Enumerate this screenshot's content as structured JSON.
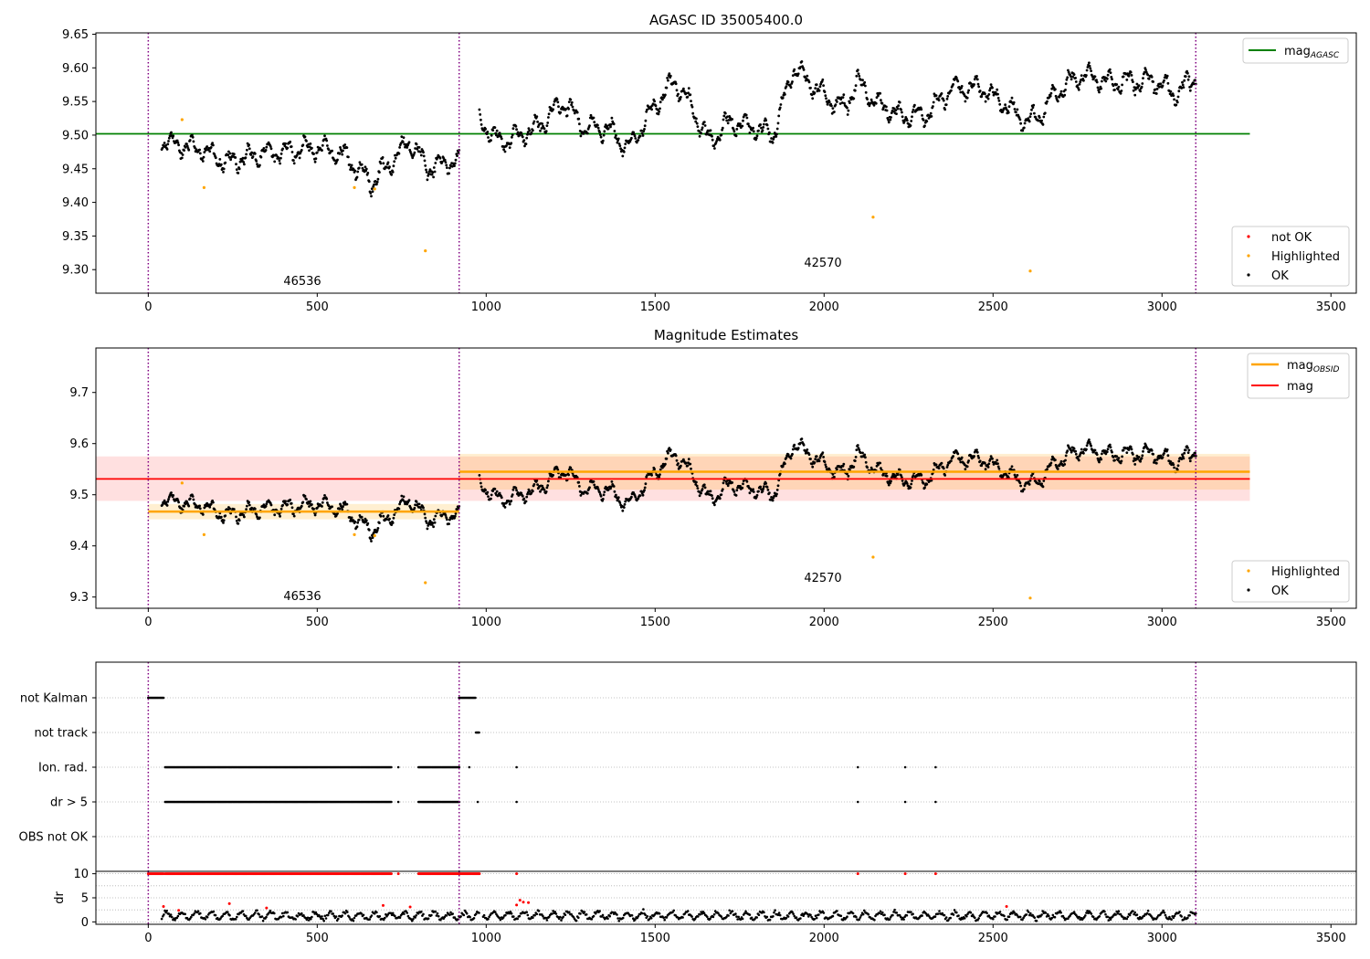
{
  "chart_data": [
    {
      "type": "scatter",
      "title": "AGASC ID 35005400.0",
      "xlim": [
        -155,
        3575
      ],
      "ylim": [
        9.265,
        9.652
      ],
      "xticks": [
        0,
        500,
        1000,
        1500,
        2000,
        2500,
        3000,
        3500
      ],
      "yticks": [
        9.3,
        9.35,
        9.4,
        9.45,
        9.5,
        9.55,
        9.6,
        9.65
      ],
      "grid": false,
      "obsid_boundaries": [
        0,
        920,
        3100
      ],
      "obsid_labels": [
        {
          "text": "46536",
          "x": 460,
          "y": 9.28
        },
        {
          "text": "42570",
          "x": 2010,
          "y": 9.307
        }
      ],
      "reference_lines": [
        {
          "name": "mag_AGASC",
          "y": 9.502,
          "x_range": [
            -155,
            3260
          ],
          "color": "#008000"
        }
      ],
      "highlighted_points": [
        [
          100,
          9.523
        ],
        [
          165,
          9.422
        ],
        [
          610,
          9.422
        ],
        [
          670,
          9.42
        ],
        [
          820,
          9.328
        ],
        [
          2145,
          9.378
        ],
        [
          2610,
          9.298
        ]
      ],
      "ok_series_segments": [
        {
          "x_range": [
            40,
            920
          ],
          "knots": [
            [
              40,
              9.49
            ],
            [
              150,
              9.48
            ],
            [
              230,
              9.46
            ],
            [
              320,
              9.47
            ],
            [
              450,
              9.48
            ],
            [
              520,
              9.48
            ],
            [
              580,
              9.47
            ],
            [
              620,
              9.45
            ],
            [
              660,
              9.43
            ],
            [
              700,
              9.45
            ],
            [
              740,
              9.47
            ],
            [
              770,
              9.49
            ],
            [
              790,
              9.48
            ],
            [
              830,
              9.45
            ],
            [
              880,
              9.46
            ],
            [
              920,
              9.46
            ]
          ]
        },
        {
          "x_range": [
            980,
            3100
          ],
          "knots": [
            [
              980,
              9.52
            ],
            [
              1040,
              9.49
            ],
            [
              1100,
              9.5
            ],
            [
              1150,
              9.51
            ],
            [
              1230,
              9.55
            ],
            [
              1290,
              9.51
            ],
            [
              1360,
              9.51
            ],
            [
              1420,
              9.48
            ],
            [
              1460,
              9.51
            ],
            [
              1520,
              9.56
            ],
            [
              1560,
              9.58
            ],
            [
              1610,
              9.54
            ],
            [
              1660,
              9.49
            ],
            [
              1720,
              9.52
            ],
            [
              1800,
              9.51
            ],
            [
              1850,
              9.5
            ],
            [
              1910,
              9.6
            ],
            [
              2000,
              9.56
            ],
            [
              2060,
              9.54
            ],
            [
              2100,
              9.58
            ],
            [
              2150,
              9.55
            ],
            [
              2220,
              9.53
            ],
            [
              2300,
              9.53
            ],
            [
              2380,
              9.57
            ],
            [
              2470,
              9.57
            ],
            [
              2520,
              9.55
            ],
            [
              2600,
              9.52
            ],
            [
              2640,
              9.53
            ],
            [
              2680,
              9.56
            ],
            [
              2760,
              9.59
            ],
            [
              2840,
              9.58
            ],
            [
              2920,
              9.58
            ],
            [
              2980,
              9.58
            ],
            [
              3040,
              9.56
            ],
            [
              3100,
              9.59
            ]
          ]
        }
      ],
      "legends": [
        {
          "entries": [
            {
              "label": "mag",
              "sub": "AGASC",
              "color": "#008000",
              "kind": "line"
            }
          ],
          "placement": "upper right"
        },
        {
          "entries": [
            {
              "label": "not OK",
              "color": "#ff0000",
              "kind": "marker"
            },
            {
              "label": "Highlighted",
              "color": "#ffa500",
              "kind": "marker"
            },
            {
              "label": "OK",
              "color": "#000000",
              "kind": "marker"
            }
          ],
          "placement": "lower right"
        }
      ]
    },
    {
      "type": "scatter",
      "title": "Magnitude Estimates",
      "xlim": [
        -155,
        3575
      ],
      "ylim": [
        9.278,
        9.787
      ],
      "xticks": [
        0,
        500,
        1000,
        1500,
        2000,
        2500,
        3000,
        3500
      ],
      "yticks": [
        9.3,
        9.4,
        9.5,
        9.6,
        9.7
      ],
      "grid": false,
      "obsid_boundaries": [
        0,
        920,
        3100
      ],
      "obsid_labels": [
        {
          "text": "46536",
          "x": 460,
          "y": 9.294
        },
        {
          "text": "42570",
          "x": 2010,
          "y": 9.331
        }
      ],
      "mag_line": {
        "name": "mag",
        "y": 9.531,
        "band": [
          9.488,
          9.575
        ],
        "x_range": [
          -155,
          3260
        ],
        "color": "#ff0000"
      },
      "mag_obsid_segments": [
        {
          "name": "mag_OBSID",
          "y": 9.467,
          "band": [
            9.452,
            9.482
          ],
          "x_range": [
            0,
            920
          ]
        },
        {
          "name": "mag_OBSID",
          "y": 9.545,
          "band": [
            9.51,
            9.58
          ],
          "x_range": [
            920,
            3260
          ]
        }
      ],
      "highlighted_points": [
        [
          100,
          9.523
        ],
        [
          165,
          9.422
        ],
        [
          610,
          9.422
        ],
        [
          670,
          9.42
        ],
        [
          820,
          9.328
        ],
        [
          2145,
          9.378
        ],
        [
          2610,
          9.298
        ]
      ],
      "legends": [
        {
          "entries": [
            {
              "label": "mag",
              "sub": "OBSID",
              "color": "#ffa500",
              "kind": "line"
            },
            {
              "label": "mag",
              "color": "#ff0000",
              "kind": "line"
            }
          ],
          "placement": "upper right"
        },
        {
          "entries": [
            {
              "label": "Highlighted",
              "color": "#ffa500",
              "kind": "marker"
            },
            {
              "label": "OK",
              "color": "#000000",
              "kind": "marker"
            }
          ],
          "placement": "lower right"
        }
      ]
    },
    {
      "type": "scatter",
      "title": "",
      "xlim": [
        -155,
        3575
      ],
      "rows": [
        "not Kalman",
        "not track",
        "Ion. rad.",
        "dr > 5",
        "OBS not OK"
      ],
      "row_marks": [
        {
          "row": "not Kalman",
          "ranges": [
            [
              0,
              45
            ],
            [
              920,
              970
            ]
          ]
        },
        {
          "row": "not track",
          "ranges": [
            [
              970,
              980
            ]
          ]
        },
        {
          "row": "Ion. rad.",
          "ranges": [
            [
              50,
              720
            ],
            [
              740,
              740
            ],
            [
              800,
              920
            ],
            [
              950,
              950
            ],
            [
              1090,
              1090
            ],
            [
              2100,
              2100
            ],
            [
              2240,
              2240
            ],
            [
              2330,
              2330
            ]
          ]
        },
        {
          "row": "dr > 5",
          "ranges": [
            [
              50,
              720
            ],
            [
              740,
              740
            ],
            [
              800,
              920
            ],
            [
              975,
              975
            ],
            [
              1090,
              1090
            ],
            [
              2100,
              2100
            ],
            [
              2240,
              2240
            ],
            [
              2330,
              2330
            ]
          ]
        },
        {
          "row": "OBS not OK",
          "ranges": []
        }
      ],
      "grid": true
    },
    {
      "type": "scatter",
      "title": "",
      "xlim": [
        -155,
        3575
      ],
      "ylim": [
        -0.5,
        10.5
      ],
      "xticks": [
        0,
        500,
        1000,
        1500,
        2000,
        2500,
        3000,
        3500
      ],
      "yticks": [
        0,
        5,
        10
      ],
      "ylabel": "dr",
      "grid": true,
      "red_ceiling_ranges": [
        [
          0,
          45
        ],
        [
          50,
          720
        ],
        [
          740,
          740
        ],
        [
          800,
          980
        ],
        [
          1090,
          1090
        ],
        [
          2100,
          2100
        ],
        [
          2240,
          2240
        ],
        [
          2330,
          2330
        ]
      ],
      "red_points": [
        [
          45,
          3.2
        ],
        [
          90,
          2.4
        ],
        [
          240,
          3.8
        ],
        [
          350,
          2.9
        ],
        [
          695,
          3.4
        ],
        [
          775,
          3.1
        ],
        [
          1090,
          3.5
        ],
        [
          1100,
          4.5
        ],
        [
          1110,
          4.1
        ],
        [
          1125,
          4.0
        ],
        [
          2540,
          3.2
        ]
      ]
    }
  ]
}
